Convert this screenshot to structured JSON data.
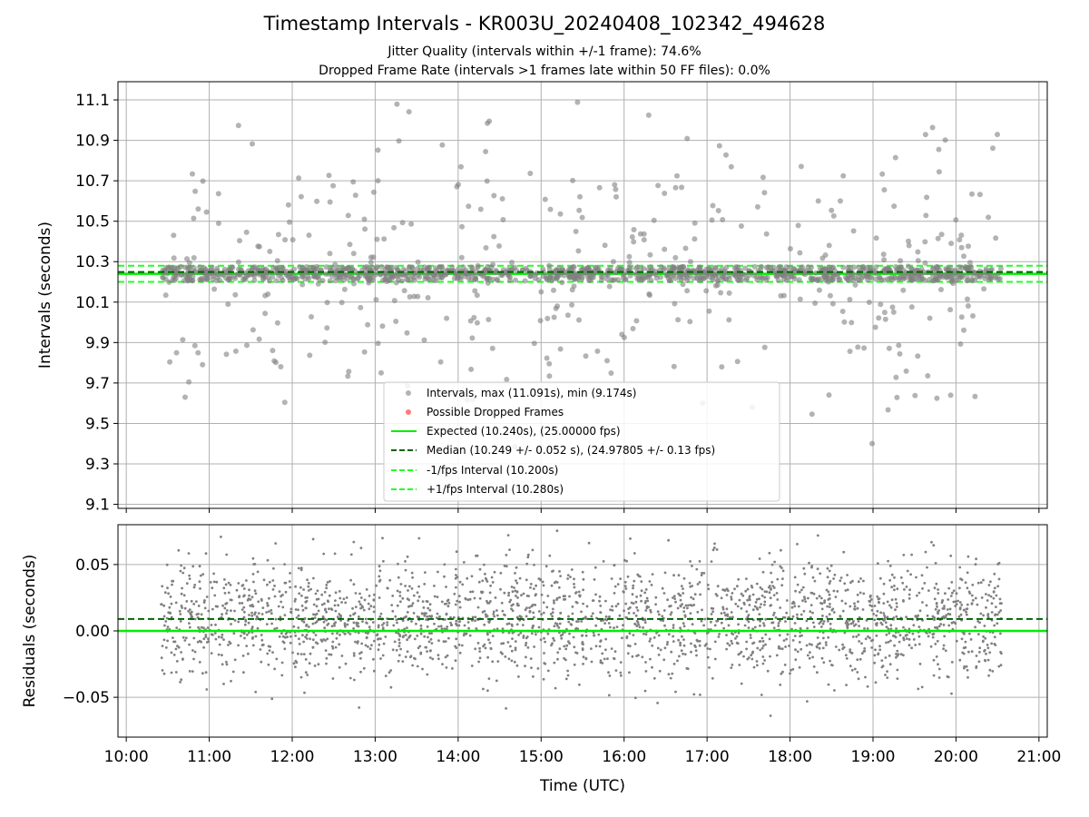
{
  "colors": {
    "intervals": "#808080",
    "dropped": "#ff4040",
    "expected": "#00ee00",
    "median": "#006400",
    "band": "#22ff22",
    "grid": "#b0b0b0"
  },
  "chart_data": [
    {
      "type": "scatter",
      "title": "Timestamp Intervals - KR003U_20240408_102342_494628",
      "subtitle_lines": [
        "Jitter Quality (intervals within +/-1 frame): 74.6%",
        "Dropped Frame Rate (intervals >1 frames late within 50 FF files): 0.0%"
      ],
      "ylabel": "Intervals (seconds)",
      "xlabel": "",
      "x_unit": "hours UTC",
      "xlim": [
        9.9,
        21.1
      ],
      "ylim": [
        9.08,
        11.19
      ],
      "yticks": [
        "9.1",
        "9.3",
        "9.5",
        "9.7",
        "9.9",
        "10.1",
        "10.3",
        "10.5",
        "10.7",
        "10.9",
        "11.1"
      ],
      "ytick_values": [
        9.1,
        9.3,
        9.5,
        9.7,
        9.9,
        10.1,
        10.3,
        10.5,
        10.7,
        10.9,
        11.1
      ],
      "grid": true,
      "legend_placement": "lower-center",
      "legend": [
        "Intervals, max (11.091s), min (9.174s)",
        "Possible Dropped Frames",
        "Expected (10.240s), (25.00000 fps)",
        "Median (10.249 +/- 0.052 s), (24.97805 +/- 0.13 fps)",
        "-1/fps Interval (10.200s)",
        "+1/fps Interval (10.280s)"
      ],
      "series": [
        {
          "kind": "points",
          "x_range": [
            10.42,
            20.55
          ],
          "y_max": 11.091,
          "y_min": 9.174,
          "center": 10.249,
          "spread": 0.052
        },
        {
          "kind": "hline",
          "y": 10.24,
          "style": "solid"
        },
        {
          "kind": "hline",
          "y": 10.249,
          "style": "dashed"
        },
        {
          "kind": "hline",
          "y": 10.2,
          "style": "dashed"
        },
        {
          "kind": "hline",
          "y": 10.28,
          "style": "dashed"
        }
      ]
    },
    {
      "type": "scatter",
      "ylabel": "Residuals (seconds)",
      "xlabel": "Time (UTC)",
      "xlim": [
        9.9,
        21.1
      ],
      "ylim": [
        -0.08,
        0.08
      ],
      "yticks": [
        "−0.05",
        "0.00",
        "0.05"
      ],
      "ytick_values": [
        -0.05,
        0,
        0.05
      ],
      "xticks": [
        "10:00",
        "11:00",
        "12:00",
        "13:00",
        "14:00",
        "15:00",
        "16:00",
        "17:00",
        "18:00",
        "19:00",
        "20:00",
        "21:00"
      ],
      "xtick_values": [
        10,
        11,
        12,
        13,
        14,
        15,
        16,
        17,
        18,
        19,
        20,
        21
      ],
      "grid": true,
      "series": [
        {
          "kind": "points",
          "x_range": [
            10.42,
            20.55
          ],
          "center": 0.009,
          "spread": 0.022
        },
        {
          "kind": "hline",
          "y": 0.0,
          "style": "solid"
        },
        {
          "kind": "hline",
          "y": 0.009,
          "style": "dashed"
        }
      ]
    }
  ]
}
